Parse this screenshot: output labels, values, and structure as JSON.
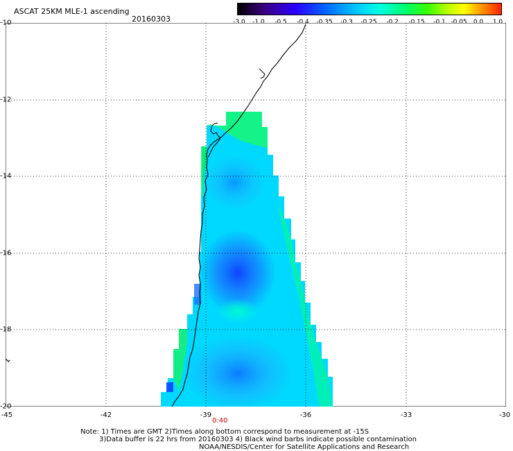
{
  "title": "ASCAT 25KM MLE-1 ascending",
  "date": "20160303",
  "colorbar": {
    "labels": [
      "-3.0",
      "-1.0",
      "-0.5",
      "-0.4",
      "-0.35",
      "-0.3",
      "-0.25",
      "-0.2",
      "-0.15",
      "-0.1",
      "-0.05",
      "0.0",
      "1.0"
    ]
  },
  "latitude_labels": [
    "-10",
    "-12",
    "-14",
    "-16",
    "-18",
    "-20"
  ],
  "longitude_labels": [
    "-45",
    "-42",
    "-39",
    "-36",
    "-33",
    "-30"
  ],
  "time_label": "0:40",
  "notes": [
    "Note: 1) Times are GMT 2)Times along bottom correspond to measurement at -15S",
    "3)Data buffer is 22 hrs from 20160303 4) Black wind barbs indicate possible contamination",
    "NOAA/NESDIS/Center for Satellite Applications and Research"
  ]
}
